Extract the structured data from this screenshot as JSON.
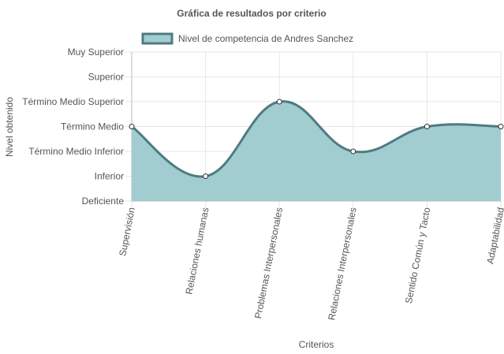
{
  "chart_data": {
    "type": "area",
    "title": "Gráfica de resultados por criterio",
    "xlabel": "Criterios",
    "ylabel": "Nivel obtenido",
    "categories": [
      "Supervisión",
      "Relaciones humanas",
      "Problemas Interpersonales",
      "Relaciones Interpersonales",
      "Sentido Común y Tacto",
      "Adaptabilidad"
    ],
    "y_levels": [
      "Deficiente",
      "Inferior",
      "Término Medio Inferior",
      "Término Medio",
      "Término Medio Superior",
      "Superior",
      "Muy Superior"
    ],
    "ylim": [
      0,
      6
    ],
    "grid": true,
    "legend_position": "top",
    "series": [
      {
        "name": "Nivel de competencia de Andres Sanchez",
        "values": [
          3,
          1,
          4,
          2,
          3,
          3
        ],
        "value_labels": [
          "Término Medio",
          "Inferior",
          "Término Medio Superior",
          "Término Medio Inferior",
          "Término Medio",
          "Término Medio"
        ],
        "fill_color": "#a1cdd0",
        "line_color": "#4e7b80"
      }
    ]
  }
}
